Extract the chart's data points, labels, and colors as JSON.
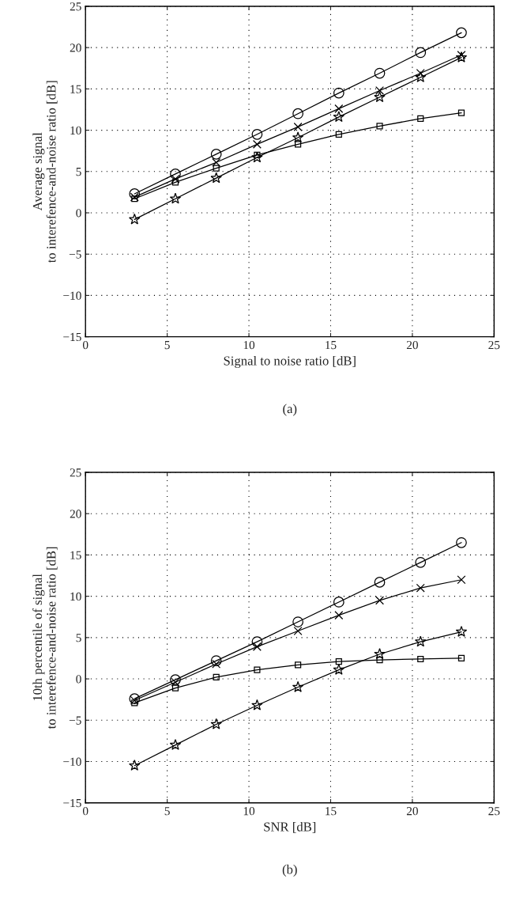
{
  "chart_data": [
    {
      "type": "line",
      "xlabel": "Signal to noise ratio [dB]",
      "ylabel": "Average signal\nto interefence-and-noise ratio [dB]",
      "annotations": [
        "(a)"
      ],
      "x": [
        3,
        5.5,
        8,
        10.5,
        13,
        15.5,
        18,
        20.5,
        23
      ],
      "xlim": [
        0,
        25
      ],
      "ylim": [
        -15,
        25
      ],
      "xticks": [
        0,
        5,
        10,
        15,
        20,
        25
      ],
      "yticks": [
        -15,
        -10,
        -5,
        0,
        5,
        10,
        15,
        20,
        25
      ],
      "grid": true,
      "line_style": "solid",
      "series": [
        {
          "color": "#000000",
          "marker": "circle",
          "values": [
            2.3,
            4.7,
            7.1,
            9.5,
            12.0,
            14.5,
            16.9,
            19.4,
            21.8
          ]
        },
        {
          "color": "#000000",
          "marker": "cross",
          "values": [
            1.9,
            4.1,
            6.1,
            8.3,
            10.4,
            12.6,
            14.8,
            16.9,
            19.1
          ]
        },
        {
          "color": "#000000",
          "marker": "star",
          "values": [
            -0.8,
            1.7,
            4.2,
            6.7,
            9.1,
            11.6,
            14.0,
            16.4,
            18.8
          ]
        },
        {
          "color": "#000000",
          "marker": "square",
          "values": [
            1.7,
            3.7,
            5.4,
            7.0,
            8.3,
            9.5,
            10.5,
            11.4,
            12.1
          ]
        }
      ]
    },
    {
      "type": "line",
      "xlabel": "SNR [dB]",
      "ylabel": "10th percentile of signal\nto interefence-and-noise ratio [dB]",
      "annotations": [
        "(b)"
      ],
      "x": [
        3,
        5.5,
        8,
        10.5,
        13,
        15.5,
        18,
        20.5,
        23
      ],
      "xlim": [
        0,
        25
      ],
      "ylim": [
        -15,
        25
      ],
      "xticks": [
        0,
        5,
        10,
        15,
        20,
        25
      ],
      "yticks": [
        -15,
        -10,
        -5,
        0,
        5,
        10,
        15,
        20,
        25
      ],
      "grid": true,
      "line_style": "solid",
      "series": [
        {
          "color": "#000000",
          "marker": "circle",
          "values": [
            -2.4,
            -0.1,
            2.2,
            4.5,
            6.9,
            9.3,
            11.7,
            14.1,
            16.5
          ]
        },
        {
          "color": "#000000",
          "marker": "cross",
          "values": [
            -2.6,
            -0.4,
            1.8,
            3.9,
            5.8,
            7.7,
            9.5,
            11.0,
            12.0
          ]
        },
        {
          "color": "#000000",
          "marker": "star",
          "values": [
            -10.5,
            -8.0,
            -5.5,
            -3.2,
            -1.0,
            1.1,
            3.0,
            4.5,
            5.7
          ]
        },
        {
          "color": "#000000",
          "marker": "square",
          "values": [
            -2.9,
            -1.1,
            0.2,
            1.1,
            1.7,
            2.1,
            2.3,
            2.4,
            2.5
          ]
        }
      ]
    }
  ]
}
